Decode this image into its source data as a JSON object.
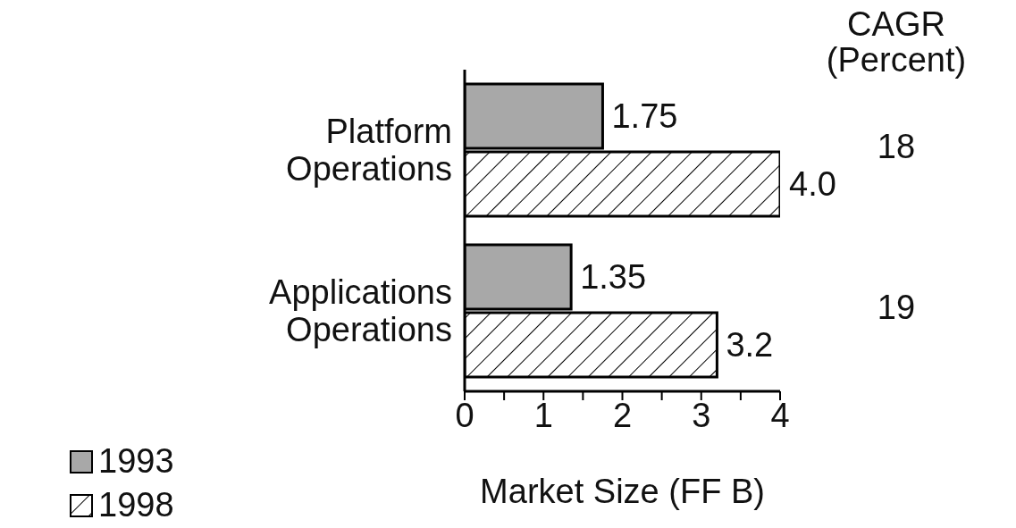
{
  "chart_data": {
    "type": "bar",
    "orientation": "horizontal",
    "categories": [
      "Platform Operations",
      "Applications Operations"
    ],
    "series": [
      {
        "name": "1993",
        "color": "#a8a8a8",
        "values": [
          1.75,
          1.35
        ],
        "value_labels": [
          "1.75",
          "1.35"
        ]
      },
      {
        "name": "1998",
        "color": "#000000",
        "values": [
          4.0,
          3.2
        ],
        "value_labels": [
          "4.0",
          "3.2"
        ]
      }
    ],
    "xlabel": "Market Size (FF B)",
    "xlim": [
      0,
      4
    ],
    "xticks": [
      0,
      {
        "value": 0.5,
        "label": null
      },
      1,
      {
        "value": 1.5,
        "label": null
      },
      2,
      {
        "value": 2.5,
        "label": null
      },
      3,
      {
        "value": 3.5,
        "label": null
      },
      4
    ],
    "annotations": [
      "CAGR\n(Percent)",
      "18",
      "19"
    ],
    "grid": false,
    "legend": "bottom left"
  }
}
